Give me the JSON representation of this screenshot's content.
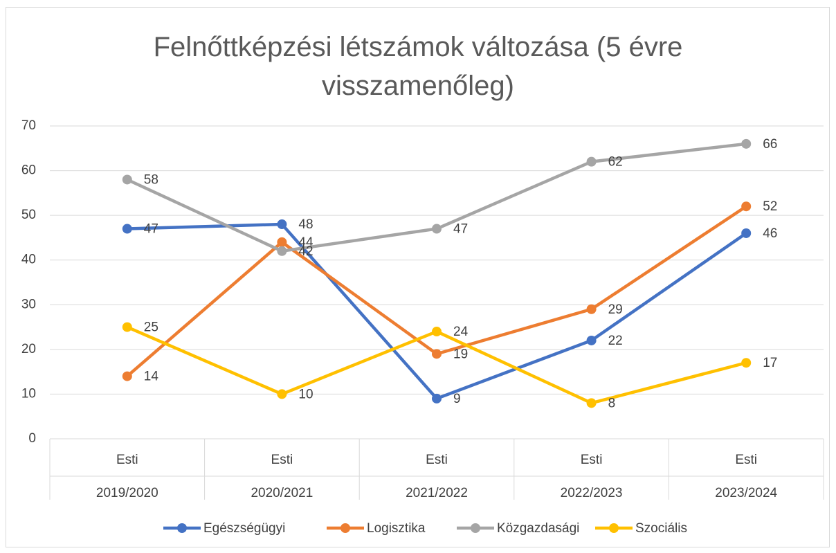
{
  "chart_data": {
    "type": "line",
    "title": "Felnőttképzési létszámok változása (5 évre visszamenőleg)",
    "categories": [
      "Esti",
      "Esti",
      "Esti",
      "Esti",
      "Esti"
    ],
    "category_groups": [
      "2019/2020",
      "2020/2021",
      "2021/2022",
      "2022/2023",
      "2023/2024"
    ],
    "series": [
      {
        "name": "Egészségügyi",
        "color": "#4472c4",
        "values": [
          47,
          48,
          9,
          22,
          46
        ]
      },
      {
        "name": "Logisztika",
        "color": "#ed7d31",
        "values": [
          14,
          44,
          19,
          29,
          52
        ]
      },
      {
        "name": "Közgazdasági",
        "color": "#a5a5a5",
        "values": [
          58,
          42,
          47,
          62,
          66
        ]
      },
      {
        "name": "Szociális",
        "color": "#ffc000",
        "values": [
          25,
          10,
          24,
          8,
          17
        ]
      }
    ],
    "ylim": [
      0,
      70
    ],
    "yticks": [
      0,
      10,
      20,
      30,
      40,
      50,
      60,
      70
    ],
    "grid": true,
    "legend": "bottom",
    "data_labels": true
  }
}
